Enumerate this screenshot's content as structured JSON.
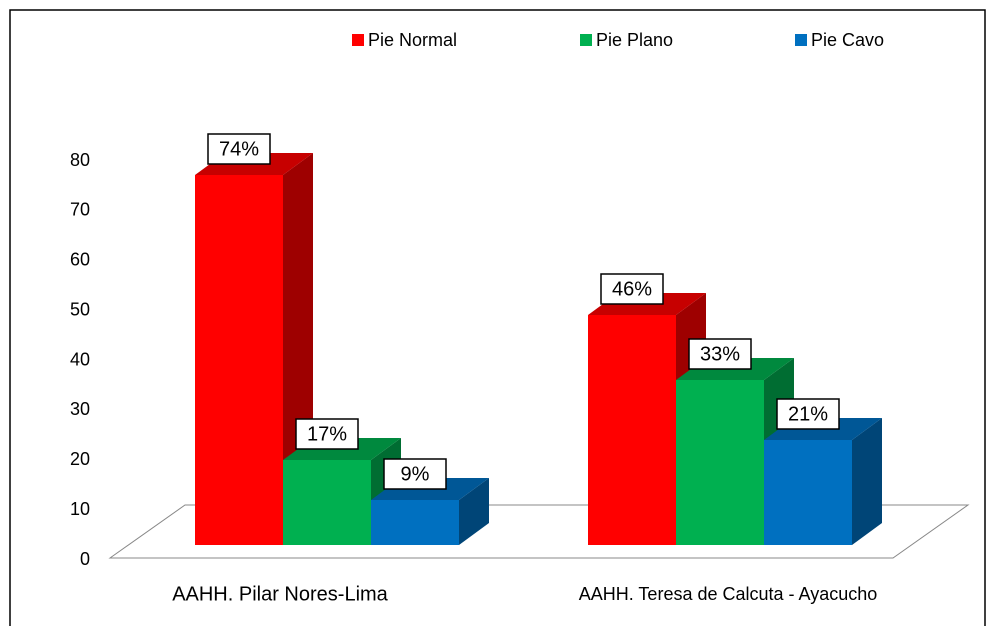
{
  "chart_data": {
    "type": "bar3d",
    "categories": [
      "AAHH. Pilar Nores-Lima",
      "AAHH. Teresa de Calcuta -  Ayacucho"
    ],
    "series": [
      {
        "name": "Pie Normal",
        "color": "#ff0000",
        "values": [
          74,
          46
        ],
        "value_labels": [
          "74%",
          "46%"
        ]
      },
      {
        "name": "Pie Plano",
        "color": "#00b050",
        "values": [
          17,
          33
        ],
        "value_labels": [
          "17%",
          "33%"
        ]
      },
      {
        "name": "Pie Cavo",
        "color": "#0070c0",
        "values": [
          9,
          21
        ],
        "value_labels": [
          "9%",
          "21%"
        ]
      }
    ],
    "ylim": [
      0,
      80
    ],
    "yticks": [
      0,
      10,
      20,
      30,
      40,
      50,
      60,
      70,
      80
    ],
    "legend": "top",
    "grid": false
  }
}
